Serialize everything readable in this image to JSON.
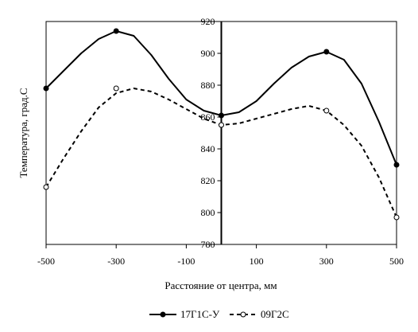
{
  "chart_data": {
    "type": "line",
    "xlabel": "Расстояние от центра, мм",
    "ylabel": "Температура, град.С",
    "xlim": [
      -500,
      500
    ],
    "ylim": [
      780,
      920
    ],
    "x_ticks": [
      -500,
      -300,
      -100,
      100,
      300,
      500
    ],
    "y_ticks": [
      780,
      800,
      820,
      840,
      860,
      880,
      900,
      920
    ],
    "x_tick_labels": [
      "-500",
      "-300",
      "-100",
      "100",
      "300",
      "500"
    ],
    "y_tick_labels": [
      "780",
      "800",
      "820",
      "840",
      "860",
      "880",
      "900",
      "920"
    ],
    "grid": false,
    "legend_position": "bottom",
    "series": [
      {
        "name": "17Г1С-У",
        "color": "#000000",
        "line_style": "solid",
        "marker": "filled-circle",
        "points": [
          [
            -500,
            878
          ],
          [
            -300,
            914
          ],
          [
            0,
            861
          ],
          [
            300,
            901
          ],
          [
            500,
            830
          ]
        ],
        "curve": [
          [
            -500,
            878
          ],
          [
            -450,
            889
          ],
          [
            -400,
            900
          ],
          [
            -350,
            909
          ],
          [
            -300,
            914
          ],
          [
            -250,
            911
          ],
          [
            -200,
            899
          ],
          [
            -150,
            884
          ],
          [
            -100,
            871
          ],
          [
            -50,
            864
          ],
          [
            0,
            861
          ],
          [
            50,
            863
          ],
          [
            100,
            870
          ],
          [
            150,
            881
          ],
          [
            200,
            891
          ],
          [
            250,
            898
          ],
          [
            300,
            901
          ],
          [
            350,
            896
          ],
          [
            400,
            881
          ],
          [
            450,
            857
          ],
          [
            500,
            830
          ]
        ]
      },
      {
        "name": "09Г2С",
        "color": "#000000",
        "line_style": "dashed",
        "marker": "open-circle",
        "points": [
          [
            -500,
            816
          ],
          [
            -300,
            878
          ],
          [
            0,
            855
          ],
          [
            300,
            864
          ],
          [
            500,
            797
          ]
        ],
        "curve": [
          [
            -500,
            816
          ],
          [
            -450,
            834
          ],
          [
            -400,
            851
          ],
          [
            -350,
            866
          ],
          [
            -300,
            875
          ],
          [
            -250,
            878
          ],
          [
            -200,
            876
          ],
          [
            -150,
            871
          ],
          [
            -100,
            865
          ],
          [
            -50,
            859
          ],
          [
            0,
            855
          ],
          [
            50,
            856
          ],
          [
            100,
            859
          ],
          [
            150,
            862
          ],
          [
            200,
            865
          ],
          [
            250,
            867
          ],
          [
            300,
            864
          ],
          [
            350,
            855
          ],
          [
            400,
            842
          ],
          [
            450,
            822
          ],
          [
            500,
            797
          ]
        ]
      }
    ]
  }
}
